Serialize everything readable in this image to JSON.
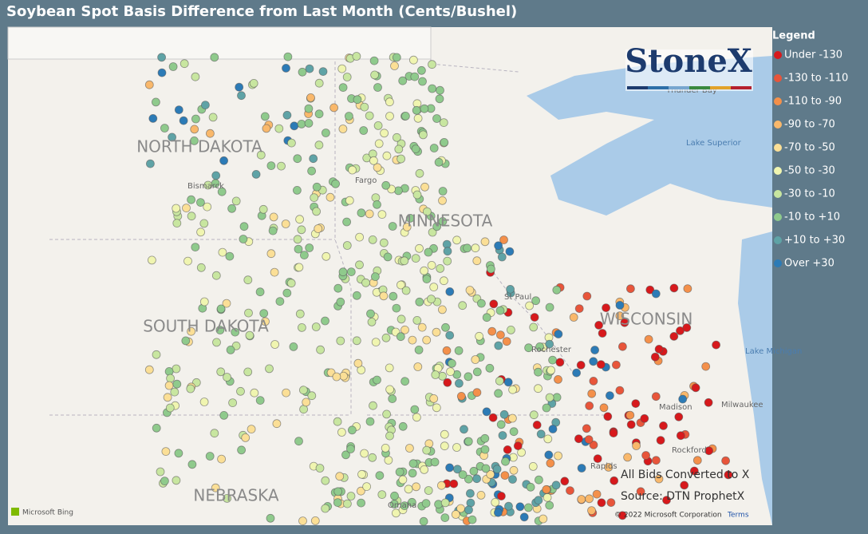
{
  "header": {
    "title": "Soybean Spot Basis Difference from Last Month (Cents/Bushel)"
  },
  "brand": "StoneX",
  "legend": {
    "title": "Legend",
    "items": [
      {
        "label": "Under -130",
        "color": "#d7191c"
      },
      {
        "label": "-130 to -110",
        "color": "#e8553a"
      },
      {
        "label": "-110 to -90",
        "color": "#f4904a"
      },
      {
        "label": "-90 to -70",
        "color": "#f9b86b"
      },
      {
        "label": "-70 to -50",
        "color": "#fbdf96"
      },
      {
        "label": "-50 to -30",
        "color": "#f0f5b0"
      },
      {
        "label": "-30 to -10",
        "color": "#c8e6a0"
      },
      {
        "label": "-10 to +10",
        "color": "#8fca8c"
      },
      {
        "label": "+10 to +30",
        "color": "#5fa3a6"
      },
      {
        "label": "Over +30",
        "color": "#2c7bb6"
      }
    ]
  },
  "map": {
    "states": [
      "NORTH DAKOTA",
      "SOUTH DAKOTA",
      "MINNESOTA",
      "WISCONSIN",
      "NEBRASKA"
    ],
    "places": [
      "Bismarck",
      "Fargo",
      "St Paul",
      "Rochester",
      "Madison",
      "Milwaukee",
      "Rockford",
      "Omaha",
      "Rapids",
      "Thunder Bay"
    ],
    "water": [
      "Lake Superior",
      "Lake Michigan"
    ],
    "notes": [
      "All Bids Converted to X",
      "Source: DTN ProphetX"
    ],
    "attribution": "© 2022 Microsoft Corporation",
    "terms": "Terms",
    "provider": "Microsoft Bing"
  }
}
